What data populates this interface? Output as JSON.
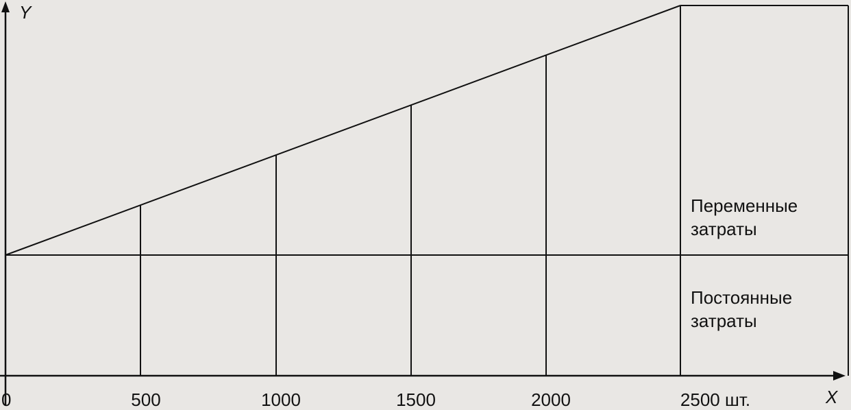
{
  "axes": {
    "y_label": "Y",
    "x_label": "X"
  },
  "x_tick_labels": [
    "0",
    "500",
    "1000",
    "1500",
    "2000",
    "2500 шт."
  ],
  "regions": {
    "variable": [
      "Переменные",
      "затраты"
    ],
    "fixed": [
      "Постоянные",
      "затраты"
    ]
  }
}
